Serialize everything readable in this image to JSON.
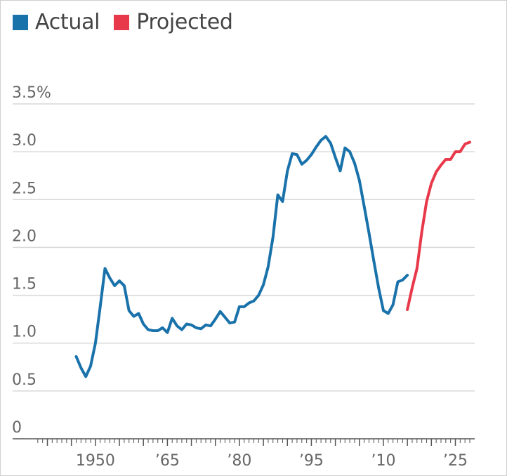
{
  "chart_data": {
    "type": "line",
    "title": "",
    "xlabel": "",
    "ylabel": "",
    "xlim": [
      1937,
      2028
    ],
    "ylim": [
      0,
      3.5
    ],
    "grid": true,
    "legend_position": "top-left",
    "y_ticks": [
      {
        "value": 0,
        "label": "0"
      },
      {
        "value": 0.5,
        "label": "0.5"
      },
      {
        "value": 1.0,
        "label": "1.0"
      },
      {
        "value": 1.5,
        "label": "1.5"
      },
      {
        "value": 2.0,
        "label": "2.0"
      },
      {
        "value": 2.5,
        "label": "2.5"
      },
      {
        "value": 3.0,
        "label": "3.0"
      },
      {
        "value": 3.5,
        "label": "3.5%"
      }
    ],
    "x_ticks": [
      {
        "value": 1950,
        "label": "1950"
      },
      {
        "value": 1965,
        "label": "’65"
      },
      {
        "value": 1980,
        "label": "’80"
      },
      {
        "value": 1995,
        "label": "’95"
      },
      {
        "value": 2010,
        "label": "’10"
      },
      {
        "value": 2025,
        "label": "’25"
      }
    ],
    "series": [
      {
        "name": "Actual",
        "color": "#1a72ab",
        "x": [
          1946,
          1947,
          1948,
          1949,
          1950,
          1951,
          1952,
          1953,
          1954,
          1955,
          1956,
          1957,
          1958,
          1959,
          1960,
          1961,
          1962,
          1963,
          1964,
          1965,
          1966,
          1967,
          1968,
          1969,
          1970,
          1971,
          1972,
          1973,
          1974,
          1975,
          1976,
          1977,
          1978,
          1979,
          1980,
          1981,
          1982,
          1983,
          1984,
          1985,
          1986,
          1987,
          1988,
          1989,
          1990,
          1991,
          1992,
          1993,
          1994,
          1995,
          1996,
          1997,
          1998,
          1999,
          2000,
          2001,
          2002,
          2003,
          2004,
          2005,
          2006,
          2007,
          2008,
          2009,
          2010,
          2011,
          2012,
          2013,
          2014,
          2015
        ],
        "y": [
          0.86,
          0.74,
          0.65,
          0.76,
          1.0,
          1.38,
          1.78,
          1.68,
          1.6,
          1.65,
          1.6,
          1.34,
          1.28,
          1.31,
          1.2,
          1.14,
          1.13,
          1.13,
          1.16,
          1.11,
          1.26,
          1.18,
          1.14,
          1.2,
          1.19,
          1.16,
          1.15,
          1.19,
          1.18,
          1.25,
          1.33,
          1.27,
          1.21,
          1.22,
          1.38,
          1.38,
          1.42,
          1.44,
          1.5,
          1.61,
          1.8,
          2.11,
          2.55,
          2.48,
          2.8,
          2.98,
          2.97,
          2.87,
          2.91,
          2.97,
          3.05,
          3.12,
          3.16,
          3.09,
          2.94,
          2.8,
          3.04,
          3.0,
          2.88,
          2.7,
          2.43,
          2.15,
          1.86,
          1.58,
          1.34,
          1.31,
          1.4,
          1.64,
          1.66,
          1.71
        ]
      },
      {
        "name": "Projected",
        "color": "#e8394b",
        "x": [
          2015,
          2016,
          2017,
          2018,
          2019,
          2020,
          2021,
          2022,
          2023,
          2024,
          2025,
          2026,
          2027,
          2028
        ],
        "y": [
          1.35,
          1.58,
          1.78,
          2.16,
          2.48,
          2.67,
          2.79,
          2.86,
          2.92,
          2.92,
          3.0,
          3.0,
          3.08,
          3.1
        ]
      }
    ]
  }
}
